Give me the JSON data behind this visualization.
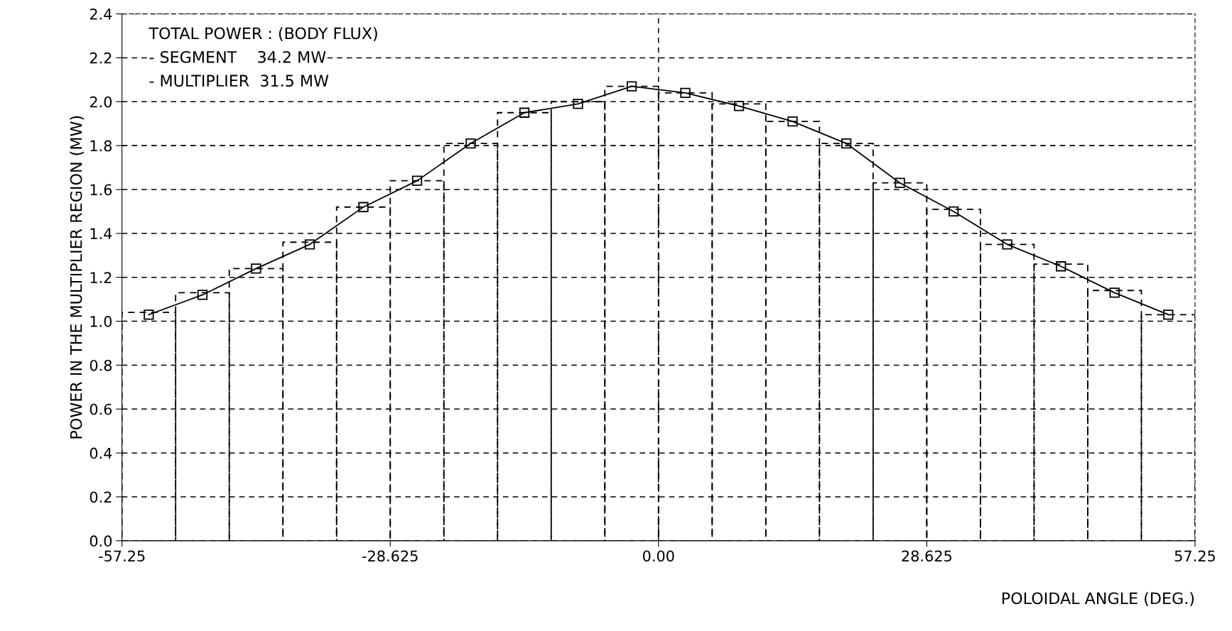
{
  "chart_data": {
    "type": "histogram",
    "xlabel": "POLOIDAL ANGLE (DEG.)",
    "ylabel": "POWER IN THE MULTIPLIER REGION (MW)",
    "annotations": [
      "TOTAL POWER : (BODY FLUX)",
      "- SEGMENT    34.2 MW",
      "- MULTIPLIER  31.5 MW"
    ],
    "bins": [
      -57.25,
      -51.525,
      -45.8,
      -40.075,
      -34.35,
      -28.625,
      -22.9,
      -17.175,
      -11.45,
      -5.725,
      0,
      5.725,
      11.45,
      17.175,
      22.9,
      28.625,
      34.35,
      40.075,
      45.8,
      51.525,
      57.25
    ],
    "values": [
      1.04,
      1.13,
      1.24,
      1.36,
      1.52,
      1.64,
      1.81,
      1.95,
      2.0,
      2.07,
      2.04,
      1.99,
      1.91,
      1.81,
      1.63,
      1.51,
      1.35,
      1.26,
      1.14,
      1.03
    ],
    "color": "#000000",
    "line_style": "dashed",
    "series": [
      {
        "type": "line",
        "color": "#000000",
        "marker": "square",
        "line_style": "solid",
        "x": [
          -54.39,
          -48.66,
          -42.94,
          -37.21,
          -31.49,
          -25.76,
          -20.04,
          -14.31,
          -8.59,
          -2.86,
          2.86,
          8.59,
          14.31,
          20.04,
          25.76,
          31.49,
          37.21,
          42.94,
          48.66,
          54.39
        ],
        "values": [
          1.03,
          1.12,
          1.24,
          1.35,
          1.52,
          1.64,
          1.81,
          1.95,
          1.99,
          2.07,
          2.04,
          1.98,
          1.91,
          1.81,
          1.63,
          1.5,
          1.35,
          1.25,
          1.13,
          1.03
        ]
      }
    ],
    "xlim": [
      -57.25,
      57.25
    ],
    "xticks": [
      -57.25,
      -28.625,
      {
        "value": 0,
        "label": "0.00"
      },
      28.625,
      57.25
    ],
    "ylim": [
      0,
      2.4
    ],
    "yticks": [
      {
        "value": 0,
        "label": "0.0"
      },
      0.2,
      0.4,
      0.6,
      0.8,
      {
        "value": 1,
        "label": "1.0"
      },
      1.2,
      1.4,
      1.6,
      1.8,
      {
        "value": 2,
        "label": "2.0"
      },
      2.2,
      2.4
    ],
    "grid": "y",
    "ref_lines": [
      {
        "axis": "x",
        "value": 0,
        "color": "#000000",
        "line_style": "dashed"
      }
    ]
  }
}
